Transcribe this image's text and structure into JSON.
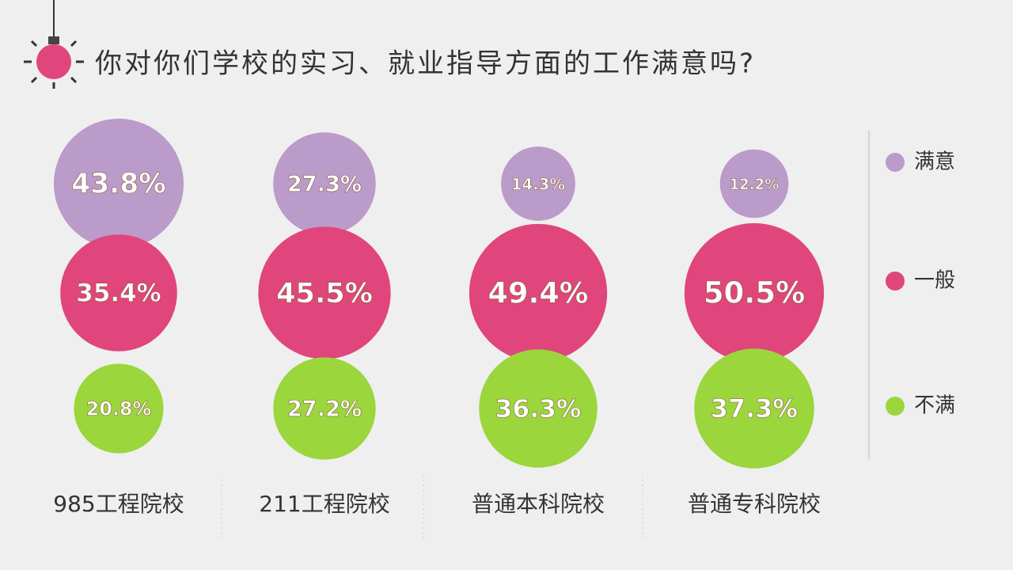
{
  "chart_data": {
    "type": "bubble",
    "title": "你对你们学校的实习、就业指导方面的工作满意吗?",
    "categories": [
      "985工程院校",
      "211工程院校",
      "普通本科院校",
      "普通专科院校"
    ],
    "series": [
      {
        "name": "满意",
        "color": "#bb9bc9",
        "values": [
          43.8,
          27.3,
          14.3,
          12.2
        ],
        "value_labels": [
          "43.8%",
          "27.3%",
          "14.3%",
          "12.2%"
        ]
      },
      {
        "name": "一般",
        "color": "#e0457c",
        "values": [
          35.4,
          45.5,
          49.4,
          50.5
        ],
        "value_labels": [
          "35.4%",
          "45.5%",
          "49.4%",
          "50.5%"
        ]
      },
      {
        "name": "不满",
        "color": "#9ad63c",
        "values": [
          20.8,
          27.2,
          36.3,
          37.3
        ],
        "value_labels": [
          "20.8%",
          "27.2%",
          "36.3%",
          "37.3%"
        ]
      }
    ]
  }
}
